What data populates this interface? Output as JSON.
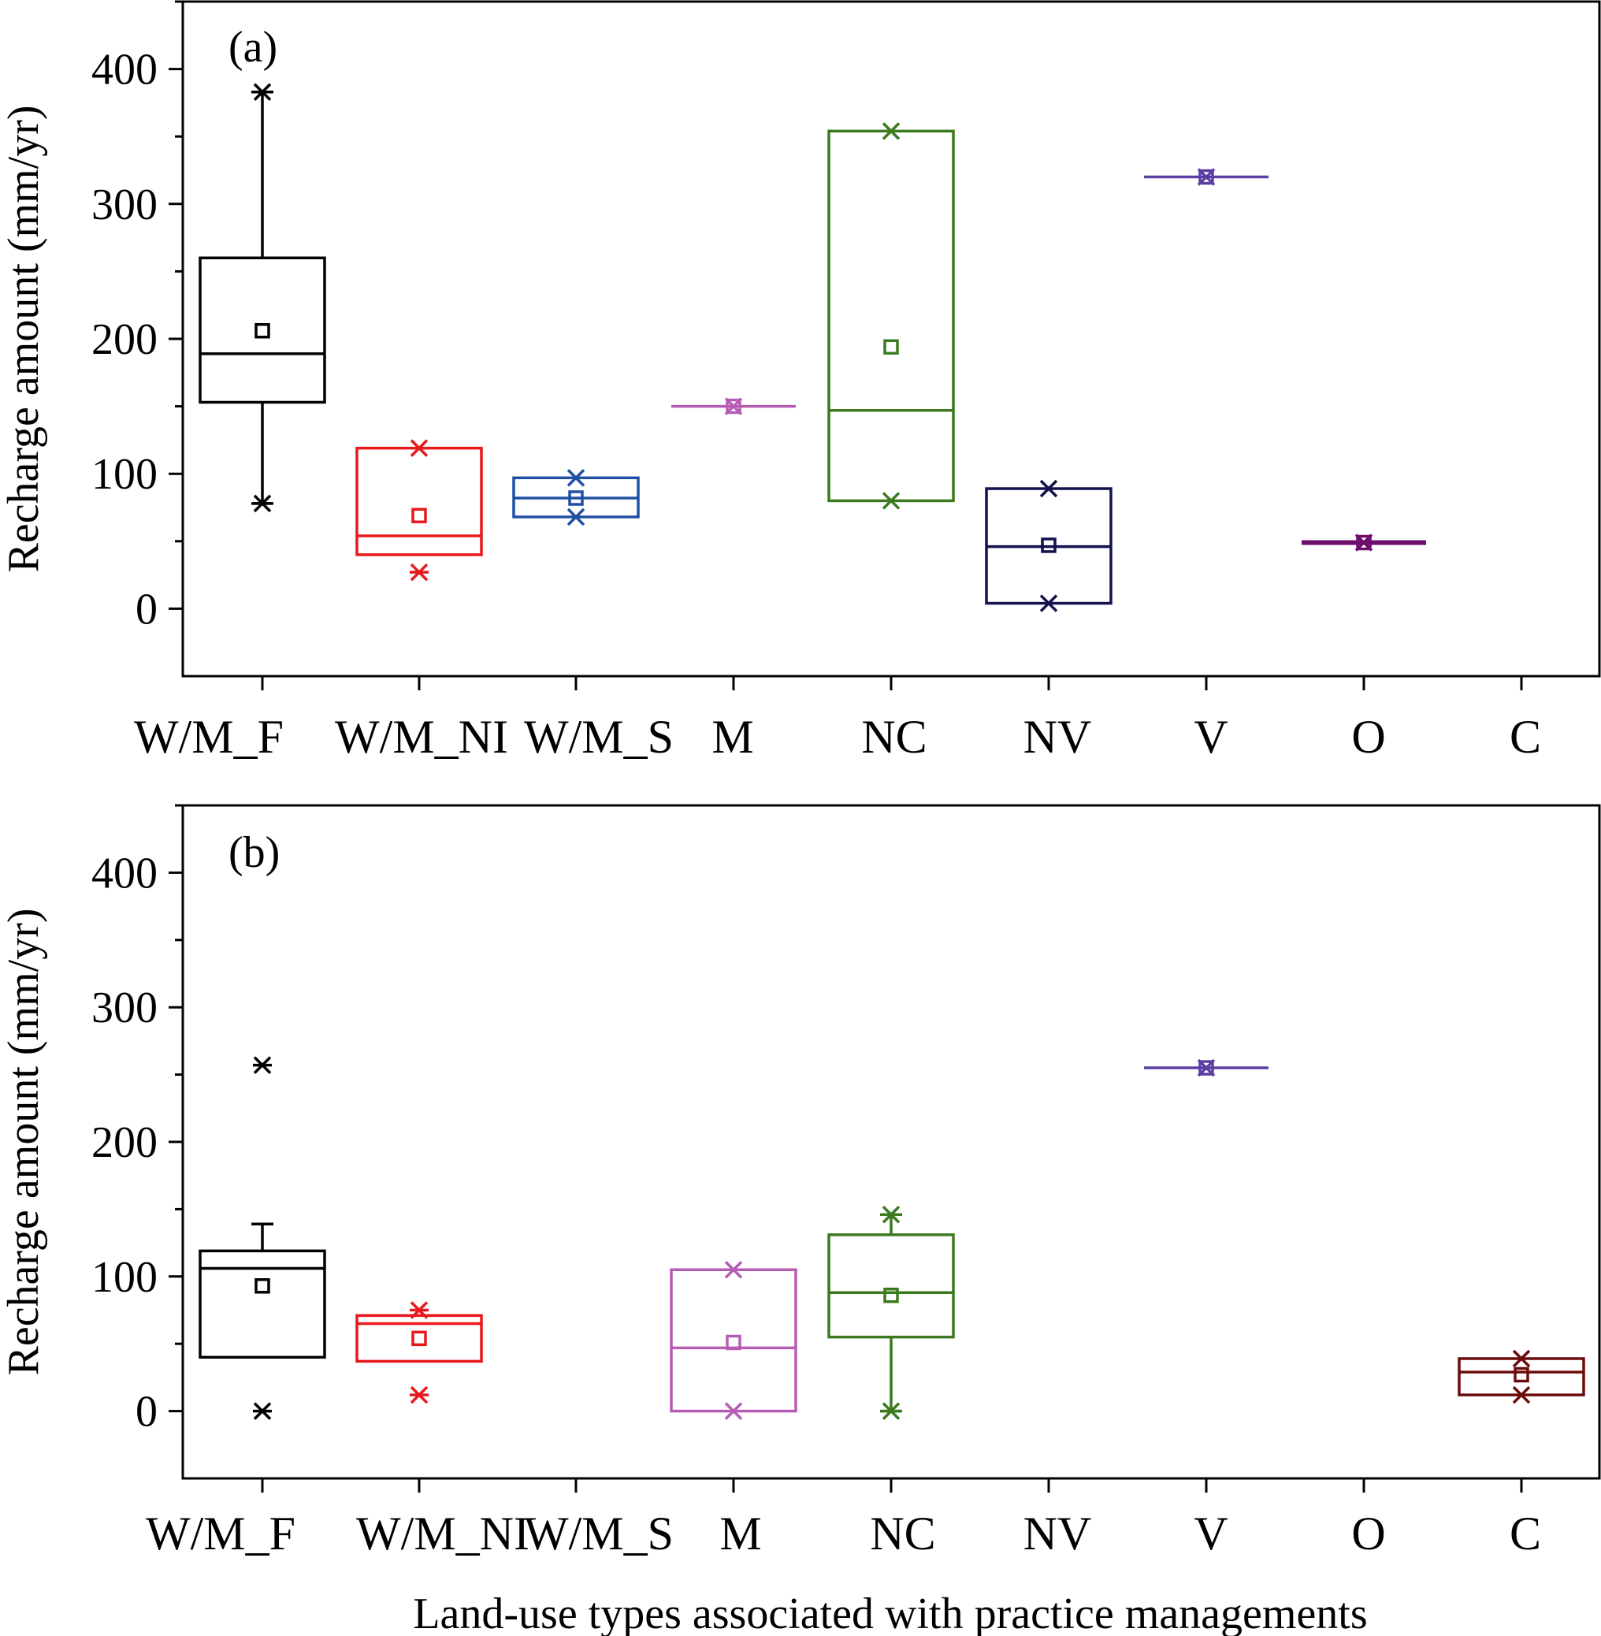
{
  "chart_data": [
    {
      "type": "box",
      "panel_label": "(a)",
      "ylabel": "Recharge amount (mm/yr)",
      "xlabel": "",
      "ylim": [
        -50,
        450
      ],
      "yticks": [
        0,
        100,
        200,
        300,
        400
      ],
      "categories": [
        "W/M_F",
        "W/M_NI",
        "W/M_S",
        "M",
        "NC",
        "NV",
        "V",
        "O",
        "C"
      ],
      "boxes": [
        {
          "category": "W/M_F",
          "color": "#000000",
          "q1": 153,
          "median": 189,
          "q3": 260,
          "mean": 206,
          "whisker_low": 78,
          "whisker_high": 383,
          "min": 78,
          "max": 383
        },
        {
          "category": "W/M_NI",
          "color": "#e8191c",
          "q1": 40,
          "median": 54,
          "q3": 119,
          "mean": 69,
          "min": 27,
          "max": 119
        },
        {
          "category": "W/M_S",
          "color": "#1f4fa3",
          "q1": 68,
          "median": 82,
          "q3": 97,
          "mean": 82,
          "min": 68,
          "max": 97
        },
        {
          "category": "M",
          "color": "#b65cb3",
          "q1": 150,
          "median": 150,
          "q3": 150,
          "mean": 150,
          "min": 150,
          "max": 150
        },
        {
          "category": "NC",
          "color": "#3b7a1e",
          "q1": 80,
          "median": 147,
          "q3": 354,
          "mean": 194,
          "min": 80,
          "max": 354
        },
        {
          "category": "NV",
          "color": "#12124f",
          "q1": 4,
          "median": 46,
          "q3": 89,
          "mean": 47,
          "min": 4,
          "max": 89
        },
        {
          "category": "V",
          "color": "#5b3ea4",
          "q1": 320,
          "median": 320,
          "q3": 320,
          "mean": 320,
          "min": 320,
          "max": 320
        },
        {
          "category": "O",
          "color": "#6e0f6e",
          "q1": 49,
          "median": 49,
          "q3": 49,
          "mean": 49,
          "min": 49,
          "max": 49
        }
      ]
    },
    {
      "type": "box",
      "panel_label": "(b)",
      "ylabel": "Recharge amount (mm/yr)",
      "xlabel": "Land-use types associated with practice managements",
      "ylim": [
        -50,
        450
      ],
      "yticks": [
        0,
        100,
        200,
        300,
        400
      ],
      "categories": [
        "W/M_F",
        "W/M_NI",
        "W/M_S",
        "M",
        "NC",
        "NV",
        "V",
        "O",
        "C"
      ],
      "boxes": [
        {
          "category": "W/M_F",
          "color": "#000000",
          "q1": 40,
          "median": 106,
          "q3": 119,
          "mean": 93,
          "whisker_low": 40,
          "whisker_high": 139,
          "min": 0,
          "max": 257
        },
        {
          "category": "W/M_NI",
          "color": "#e8191c",
          "q1": 37,
          "median": 65,
          "q3": 71,
          "mean": 54,
          "min": 12,
          "max": 75
        },
        {
          "category": "M",
          "color": "#b65cb3",
          "q1": 0,
          "median": 47,
          "q3": 105,
          "mean": 51,
          "min": 0,
          "max": 105
        },
        {
          "category": "NC",
          "color": "#3b7a1e",
          "q1": 55,
          "median": 88,
          "q3": 131,
          "mean": 86,
          "whisker_low": 0,
          "whisker_high": 146,
          "min": 0,
          "max": 146
        },
        {
          "category": "V",
          "color": "#5b3ea4",
          "q1": 255,
          "median": 255,
          "q3": 255,
          "mean": 255,
          "min": 255,
          "max": 255
        },
        {
          "category": "C",
          "color": "#6b0c0c",
          "q1": 12,
          "median": 29,
          "q3": 39,
          "mean": 27,
          "min": 12,
          "max": 39
        }
      ]
    }
  ]
}
